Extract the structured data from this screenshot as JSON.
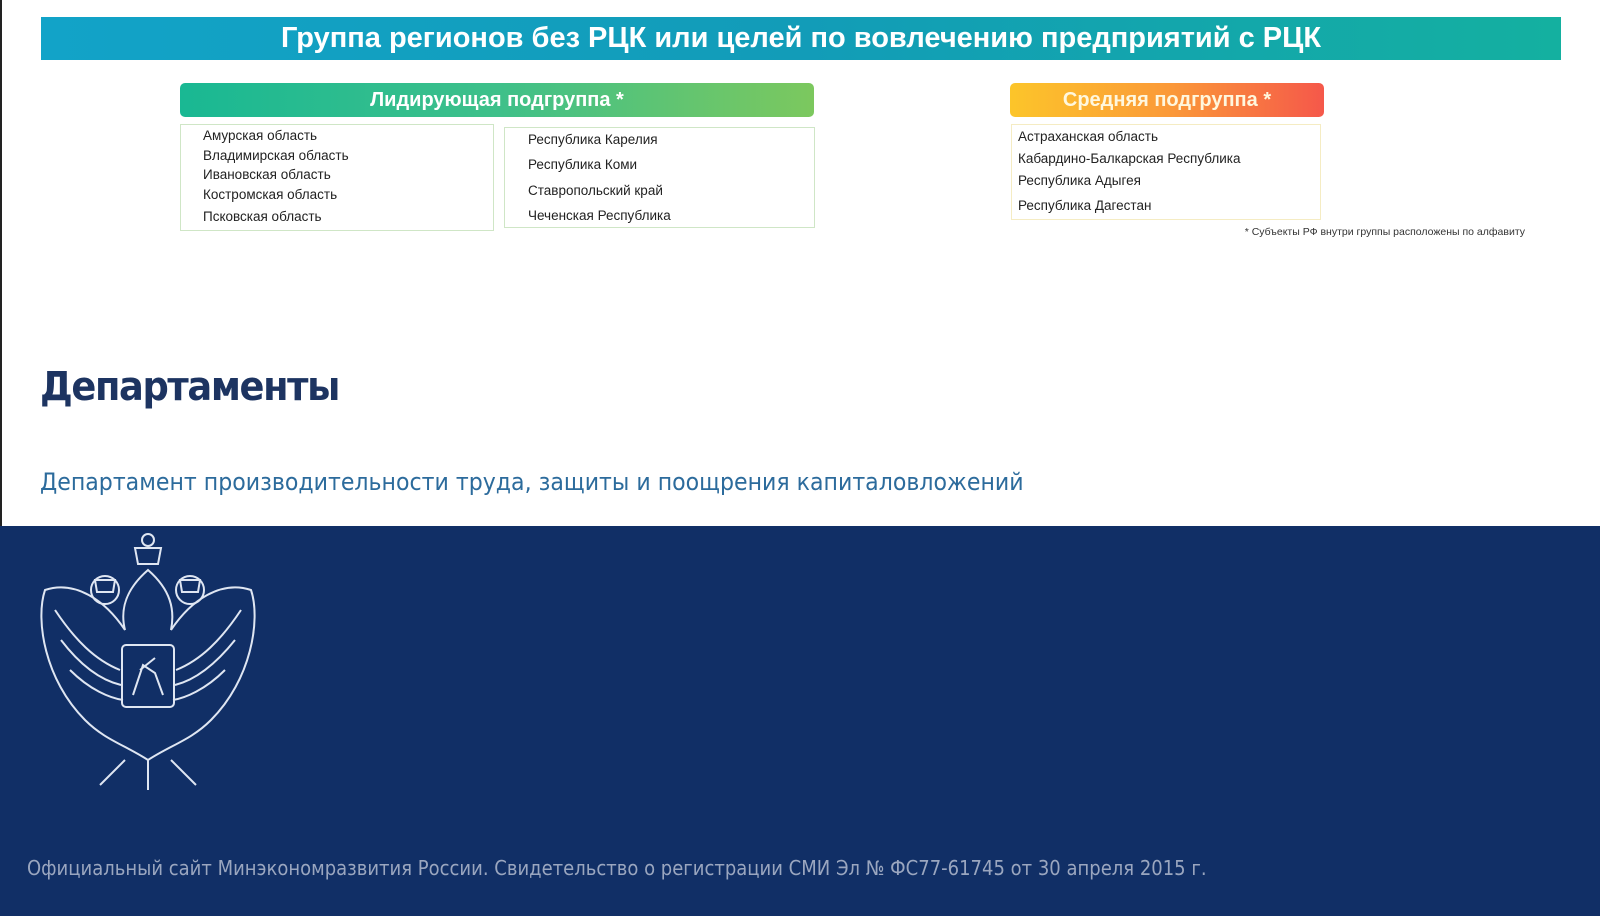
{
  "banner": {
    "title": "Группа регионов без РЦК или целей по вовлечению предприятий с РЦК"
  },
  "leading": {
    "title": "Лидирующая подгруппа *",
    "col1": [
      "Амурская область",
      "Владимирская область",
      "Ивановская область",
      "Костромская область",
      "Псковская область"
    ],
    "col2": [
      "Республика Карелия",
      "Республика Коми",
      "Ставропольский край",
      "Чеченская Республика"
    ]
  },
  "middle": {
    "title": "Средняя подгруппа *",
    "items": [
      "Астраханская область",
      "Кабардино-Балкарская Республика",
      "Республика Адыгея",
      "Республика Дагестан"
    ]
  },
  "footnote": "* Субъекты РФ внутри группы расположены по алфавиту",
  "departments": {
    "heading": "Департаменты",
    "link": "Департамент производительности труда, защиты и поощрения капиталовложений"
  },
  "footer": {
    "text": "Официальный сайт Минэкономразвития России. Свидетельство о регистрации СМИ Эл № ФС77-61745 от 30 апреля 2015 г.",
    "emblem": "coat-of-arms-russia"
  }
}
